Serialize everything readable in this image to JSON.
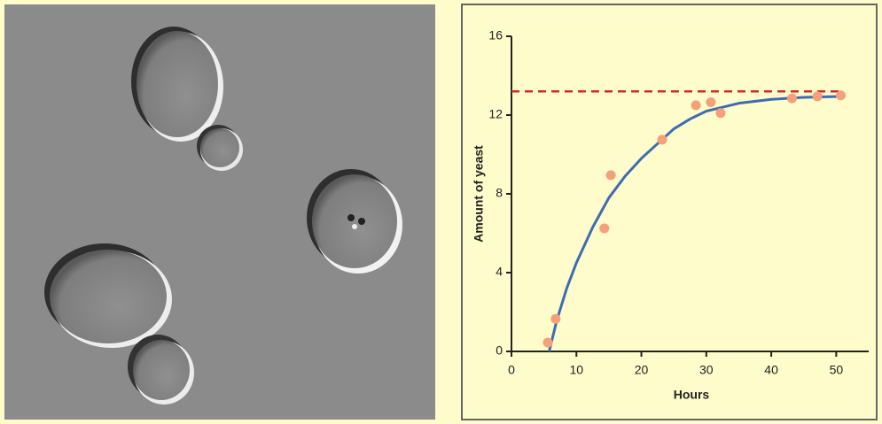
{
  "chart_data": {
    "type": "scatter",
    "xlabel": "Hours",
    "ylabel": "Amount of yeast",
    "xlim": [
      0,
      55
    ],
    "ylim": [
      0,
      16
    ],
    "xticks": [
      0,
      10,
      20,
      30,
      40,
      50
    ],
    "yticks": [
      0,
      4,
      8,
      12,
      16
    ],
    "series": [
      {
        "color": "#f4a07a",
        "x": [
          5.6,
          6.8,
          14.3,
          15.3,
          23.2,
          28.4,
          30.7,
          32.2,
          43.2,
          47.1,
          50.7
        ],
        "values": [
          0.45,
          1.65,
          6.25,
          8.95,
          10.75,
          12.5,
          12.65,
          12.1,
          12.85,
          12.95,
          13.0
        ]
      }
    ],
    "fit": {
      "color": "#3d6cb3",
      "x": [
        5.8,
        7,
        8.5,
        10,
        12.5,
        15,
        17.5,
        20,
        23,
        25,
        27.5,
        30,
        35,
        40,
        45,
        51
      ],
      "values": [
        0,
        1.6,
        3.2,
        4.5,
        6.3,
        7.8,
        8.9,
        9.8,
        10.7,
        11.3,
        11.8,
        12.2,
        12.6,
        12.8,
        12.9,
        12.95
      ]
    },
    "reference_line": {
      "value": 13.2,
      "color": "#d62728",
      "style": "dashed"
    }
  }
}
